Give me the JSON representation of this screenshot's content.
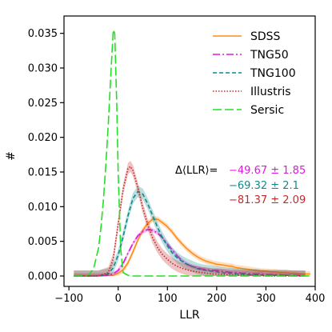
{
  "chart_data": {
    "type": "line",
    "xlabel": "LLR",
    "ylabel": "#",
    "xlim": [
      -110,
      400
    ],
    "ylim": [
      -0.0015,
      0.0375
    ],
    "xticks": [
      -100,
      0,
      100,
      200,
      300,
      400
    ],
    "xtick_labels": [
      "−100",
      "0",
      "100",
      "200",
      "300",
      "400"
    ],
    "yticks": [
      0,
      0.005,
      0.01,
      0.015,
      0.02,
      0.025,
      0.03,
      0.035
    ],
    "ytick_labels": [
      "0.000",
      "0.005",
      "0.010",
      "0.015",
      "0.020",
      "0.025",
      "0.030",
      "0.035"
    ],
    "grid": false,
    "legend_position": "upper-right",
    "series": [
      {
        "name": "SDSS",
        "color": "#ff8c1a",
        "dash": "solid",
        "x": [
          -90,
          -40,
          -10,
          0,
          10,
          20,
          30,
          40,
          50,
          60,
          70,
          80,
          90,
          100,
          110,
          120,
          130,
          140,
          150,
          160,
          170,
          180,
          190,
          200,
          210,
          220,
          230,
          240,
          250,
          260,
          270,
          280,
          290,
          300,
          310,
          320,
          330,
          340,
          350,
          360,
          370,
          380,
          390
        ],
        "values": [
          0.0,
          0.0,
          0.0001,
          0.0004,
          0.0009,
          0.0019,
          0.0035,
          0.0052,
          0.0066,
          0.0076,
          0.0082,
          0.0082,
          0.0077,
          0.0071,
          0.0063,
          0.0054,
          0.0046,
          0.0039,
          0.0033,
          0.0028,
          0.0024,
          0.0021,
          0.0019,
          0.0017,
          0.0016,
          0.0015,
          0.0014,
          0.0012,
          0.0011,
          0.001,
          0.0009,
          0.0008,
          0.0007,
          0.0007,
          0.0006,
          0.0006,
          0.0005,
          0.0005,
          0.0004,
          0.0004,
          0.0003,
          0.0003,
          0.0003
        ],
        "band": 0.0004
      },
      {
        "name": "TNG50",
        "color": "#e016e0",
        "dash": "dashdot",
        "x": [
          -90,
          -40,
          -20,
          -10,
          0,
          10,
          20,
          30,
          40,
          50,
          60,
          70,
          80,
          90,
          100,
          110,
          120,
          130,
          140,
          150,
          160,
          170,
          180,
          190,
          200,
          210,
          220,
          230,
          240,
          250,
          260,
          270,
          280,
          290,
          300,
          310,
          320,
          340,
          360,
          380
        ],
        "values": [
          0.0,
          0.0,
          0.0001,
          0.0003,
          0.0008,
          0.0018,
          0.0033,
          0.0047,
          0.0058,
          0.0064,
          0.0067,
          0.0066,
          0.0062,
          0.0055,
          0.0046,
          0.0037,
          0.0029,
          0.0022,
          0.0017,
          0.0014,
          0.0012,
          0.001,
          0.0009,
          0.0008,
          0.0008,
          0.0007,
          0.0006,
          0.0005,
          0.0005,
          0.0004,
          0.0004,
          0.0003,
          0.0003,
          0.0003,
          0.0002,
          0.0002,
          0.0002,
          0.0001,
          0.0001,
          0.0
        ],
        "band": 0.0003
      },
      {
        "name": "TNG100",
        "color": "#0f8a8a",
        "dash": "dashed",
        "x": [
          -90,
          -40,
          -20,
          -10,
          0,
          10,
          20,
          30,
          40,
          50,
          60,
          70,
          80,
          90,
          100,
          110,
          120,
          130,
          140,
          150,
          160,
          170,
          180,
          190,
          200,
          210,
          220,
          230,
          240,
          250,
          260,
          280,
          300,
          320,
          340,
          360,
          380
        ],
        "values": [
          0.0,
          0.0,
          0.0003,
          0.0012,
          0.003,
          0.0057,
          0.0087,
          0.0112,
          0.0122,
          0.0118,
          0.0104,
          0.0087,
          0.007,
          0.0055,
          0.0043,
          0.0033,
          0.0026,
          0.0021,
          0.0017,
          0.0014,
          0.0011,
          0.0009,
          0.0008,
          0.0007,
          0.0006,
          0.0005,
          0.0004,
          0.0004,
          0.0003,
          0.0003,
          0.0002,
          0.0002,
          0.0001,
          0.0001,
          0.0001,
          0.0,
          0.0
        ],
        "band": 0.0008
      },
      {
        "name": "Illustris",
        "color": "#c62828",
        "dash": "dotted",
        "x": [
          -90,
          -40,
          -20,
          -10,
          0,
          10,
          20,
          25,
          30,
          40,
          50,
          60,
          70,
          80,
          90,
          100,
          110,
          120,
          130,
          140,
          150,
          160,
          170,
          180,
          190,
          200,
          220,
          240,
          260,
          280,
          300,
          320,
          340,
          360,
          380
        ],
        "values": [
          0.0,
          0.0,
          0.0005,
          0.0025,
          0.0075,
          0.0125,
          0.0155,
          0.0158,
          0.0152,
          0.0127,
          0.0098,
          0.0074,
          0.0055,
          0.0041,
          0.0031,
          0.0024,
          0.0018,
          0.0014,
          0.0011,
          0.0009,
          0.0007,
          0.0006,
          0.0005,
          0.0004,
          0.0003,
          0.0003,
          0.0002,
          0.0001,
          0.0001,
          0.0001,
          0.0,
          0.0,
          0.0,
          0.0,
          0.0
        ],
        "band": 0.0008
      },
      {
        "name": "Sersic",
        "color": "#22e022",
        "dash": "longdash",
        "x": [
          -90,
          -70,
          -60,
          -50,
          -40,
          -35,
          -30,
          -25,
          -20,
          -15,
          -10,
          -7,
          -3,
          0,
          5,
          10,
          20,
          30,
          50,
          80,
          120,
          200,
          300,
          390
        ],
        "values": [
          0.0,
          0.0,
          0.0002,
          0.001,
          0.004,
          0.007,
          0.011,
          0.016,
          0.022,
          0.029,
          0.0355,
          0.035,
          0.025,
          0.015,
          0.004,
          0.0005,
          0.0001,
          0.0,
          0.0,
          0.0,
          0.0,
          0.0,
          0.0,
          0.0
        ],
        "band": 0
      }
    ],
    "annotation": {
      "label": "Δ⟨LLR⟩=",
      "values": [
        {
          "text": "−49.67 ± 1.85",
          "color": "#e016e0"
        },
        {
          "text": "−69.32 ± 2.1",
          "color": "#0f8a8a"
        },
        {
          "text": "−81.37 ± 2.09",
          "color": "#c62828"
        }
      ]
    }
  }
}
